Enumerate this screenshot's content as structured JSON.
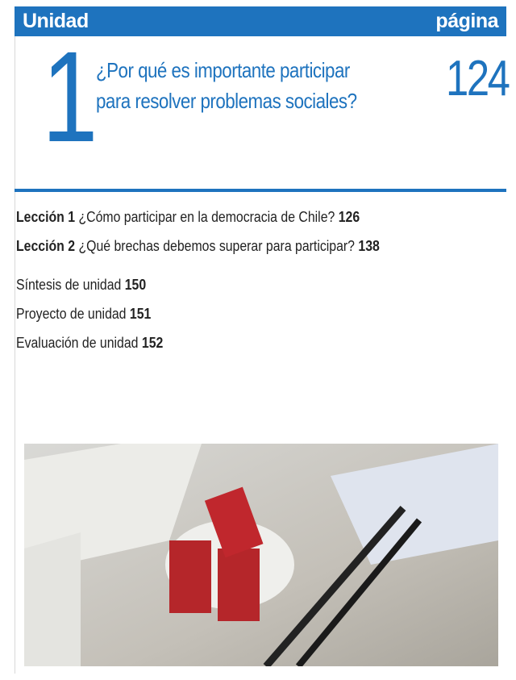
{
  "header": {
    "unit_label": "Unidad",
    "page_label": "página"
  },
  "unit": {
    "number": 1,
    "title_lines": [
      "¿Por qué es importante participar",
      "para resolver problemas sociales?"
    ],
    "page": 124
  },
  "lessons": [
    {
      "label": "Lección 1",
      "title": "¿Cómo participar en la democracia de Chile?",
      "page": 126
    },
    {
      "label": "Lección 2",
      "title": "¿Qué brechas debemos superar para participar?",
      "page": 138
    }
  ],
  "sections": [
    {
      "title": "Síntesis de unidad",
      "page": 150
    },
    {
      "title": "Proyecto de unidad",
      "page": 151
    },
    {
      "title": "Evaluación de unidad",
      "page": 152
    }
  ]
}
